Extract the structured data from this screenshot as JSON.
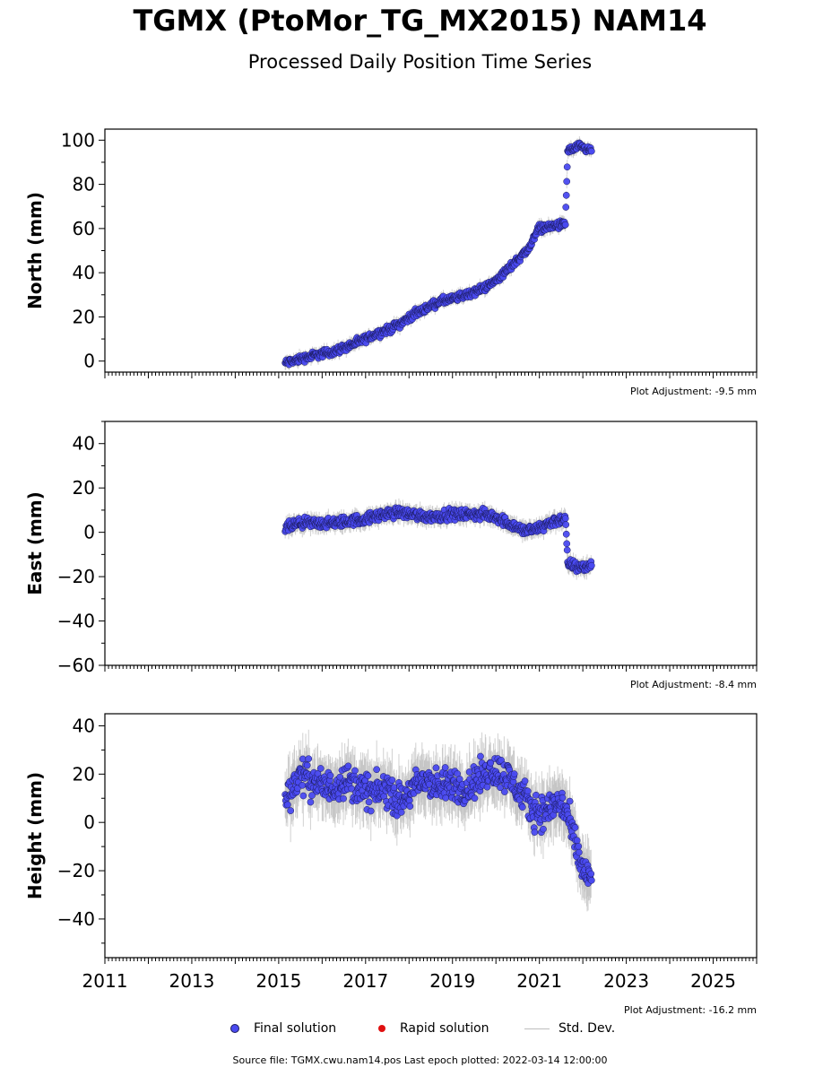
{
  "title": "TGMX (PtoMor_TG_MX2015) NAM14",
  "subtitle": "Processed Daily Position Time Series",
  "colors": {
    "final": "#4a4af0",
    "final_edge": "#1a1a5a",
    "rapid": "#e01010",
    "stddev": "#bdbdbd"
  },
  "legend": {
    "final": "Final solution",
    "rapid": "Rapid solution",
    "stddev": "Std. Dev."
  },
  "footer": "Source file: TGMX.cwu.nam14.pos  Last epoch plotted: 2022-03-14 12:00:00",
  "chart_data": [
    {
      "type": "scatter",
      "ylabel": "North (mm)",
      "xlim": [
        2011,
        2026
      ],
      "ylim": [
        -5,
        105
      ],
      "yticks": [
        0,
        20,
        40,
        60,
        80,
        100
      ],
      "adjustment": "Plot Adjustment: -9.5 mm",
      "series": [
        {
          "values": [
            [
              2015.15,
              -1
            ],
            [
              2015.5,
              1
            ],
            [
              2015.9,
              3
            ],
            [
              2016.2,
              4
            ],
            [
              2016.5,
              6
            ],
            [
              2016.9,
              9
            ],
            [
              2017.2,
              12
            ],
            [
              2017.5,
              14
            ],
            [
              2017.8,
              17
            ],
            [
              2018.1,
              21
            ],
            [
              2018.4,
              24
            ],
            [
              2018.7,
              27
            ],
            [
              2019.0,
              28
            ],
            [
              2019.3,
              30
            ],
            [
              2019.6,
              32
            ],
            [
              2019.9,
              35
            ],
            [
              2020.2,
              40
            ],
            [
              2020.5,
              46
            ],
            [
              2020.8,
              52
            ],
            [
              2020.95,
              60
            ],
            [
              2021.3,
              61
            ],
            [
              2021.6,
              62
            ],
            [
              2021.65,
              95
            ],
            [
              2021.9,
              97
            ],
            [
              2022.2,
              95
            ]
          ],
          "error": 1.5
        }
      ]
    },
    {
      "type": "scatter",
      "ylabel": "East (mm)",
      "xlim": [
        2011,
        2026
      ],
      "ylim": [
        -60,
        50
      ],
      "yticks": [
        -60,
        -40,
        -20,
        0,
        20,
        40
      ],
      "adjustment": "Plot Adjustment: -8.4 mm",
      "series": [
        {
          "values": [
            [
              2015.15,
              2
            ],
            [
              2015.5,
              4
            ],
            [
              2015.9,
              4
            ],
            [
              2016.2,
              4
            ],
            [
              2016.6,
              5
            ],
            [
              2017.0,
              6
            ],
            [
              2017.4,
              8
            ],
            [
              2017.8,
              9
            ],
            [
              2018.1,
              8
            ],
            [
              2018.5,
              7
            ],
            [
              2018.9,
              8
            ],
            [
              2019.3,
              8
            ],
            [
              2019.7,
              8
            ],
            [
              2020.0,
              7
            ],
            [
              2020.3,
              4
            ],
            [
              2020.6,
              1
            ],
            [
              2020.9,
              1
            ],
            [
              2021.2,
              4
            ],
            [
              2021.5,
              6
            ],
            [
              2021.6,
              6
            ],
            [
              2021.65,
              -14
            ],
            [
              2021.9,
              -16
            ],
            [
              2022.2,
              -15
            ]
          ],
          "error": 2
        }
      ]
    },
    {
      "type": "scatter",
      "ylabel": "Height (mm)",
      "xlim": [
        2011,
        2026
      ],
      "ylim": [
        -56,
        45
      ],
      "yticks": [
        -40,
        -20,
        0,
        20,
        40
      ],
      "xticks": [
        2011,
        2013,
        2015,
        2017,
        2019,
        2021,
        2023,
        2025
      ],
      "adjustment": "Plot Adjustment: -16.2 mm",
      "series": [
        {
          "values": [
            [
              2015.15,
              10
            ],
            [
              2015.5,
              20
            ],
            [
              2015.9,
              16
            ],
            [
              2016.2,
              14
            ],
            [
              2016.5,
              18
            ],
            [
              2016.9,
              14
            ],
            [
              2017.2,
              12
            ],
            [
              2017.5,
              14
            ],
            [
              2017.8,
              8
            ],
            [
              2018.1,
              14
            ],
            [
              2018.4,
              18
            ],
            [
              2018.7,
              14
            ],
            [
              2019.0,
              16
            ],
            [
              2019.3,
              14
            ],
            [
              2019.6,
              18
            ],
            [
              2019.9,
              22
            ],
            [
              2020.2,
              20
            ],
            [
              2020.5,
              14
            ],
            [
              2020.8,
              6
            ],
            [
              2021.1,
              4
            ],
            [
              2021.4,
              8
            ],
            [
              2021.6,
              6
            ],
            [
              2021.8,
              -8
            ],
            [
              2022.0,
              -20
            ],
            [
              2022.2,
              -24
            ]
          ],
          "error": 6
        }
      ]
    }
  ]
}
